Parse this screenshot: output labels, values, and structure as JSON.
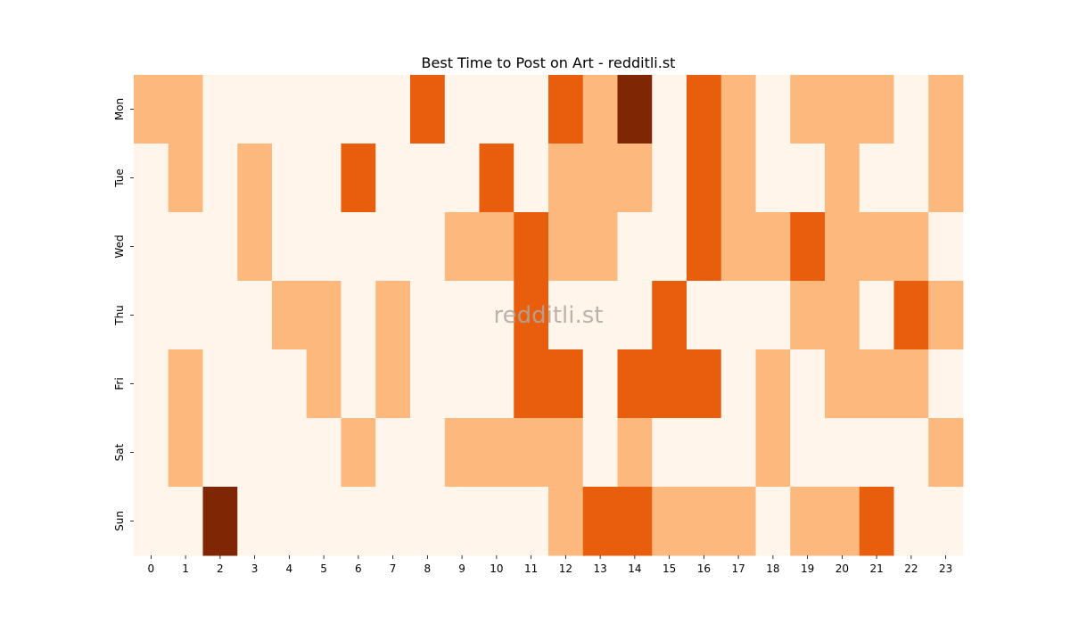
{
  "chart_data": {
    "type": "heatmap",
    "title": "Best Time to Post on Art - redditli.st",
    "watermark": "redditli.st",
    "xlabel": "",
    "ylabel": "",
    "x": [
      "0",
      "1",
      "2",
      "3",
      "4",
      "5",
      "6",
      "7",
      "8",
      "9",
      "10",
      "11",
      "12",
      "13",
      "14",
      "15",
      "16",
      "17",
      "18",
      "19",
      "20",
      "21",
      "22",
      "23"
    ],
    "y": [
      "Mon",
      "Tue",
      "Wed",
      "Thu",
      "Fri",
      "Sat",
      "Sun"
    ],
    "colormap": [
      "#fff5eb",
      "#fdb97d",
      "#e95e0d",
      "#7f2704"
    ],
    "values": [
      [
        1,
        1,
        0,
        0,
        0,
        0,
        0,
        0,
        2,
        0,
        0,
        0,
        2,
        1,
        3,
        0,
        2,
        1,
        0,
        1,
        1,
        1,
        0,
        1
      ],
      [
        0,
        1,
        0,
        1,
        0,
        0,
        2,
        0,
        0,
        0,
        2,
        0,
        1,
        1,
        1,
        0,
        2,
        1,
        0,
        0,
        1,
        0,
        0,
        1
      ],
      [
        0,
        0,
        0,
        1,
        0,
        0,
        0,
        0,
        0,
        1,
        1,
        2,
        1,
        1,
        0,
        0,
        2,
        1,
        1,
        2,
        1,
        1,
        1,
        0
      ],
      [
        0,
        0,
        0,
        0,
        1,
        1,
        0,
        1,
        0,
        0,
        0,
        2,
        0,
        0,
        0,
        2,
        0,
        0,
        0,
        1,
        1,
        0,
        2,
        1
      ],
      [
        0,
        1,
        0,
        0,
        0,
        1,
        0,
        1,
        0,
        0,
        0,
        2,
        2,
        0,
        2,
        2,
        2,
        0,
        1,
        0,
        1,
        1,
        1,
        0
      ],
      [
        0,
        1,
        0,
        0,
        0,
        0,
        1,
        0,
        0,
        1,
        1,
        1,
        1,
        0,
        1,
        0,
        0,
        0,
        1,
        0,
        0,
        0,
        0,
        1
      ],
      [
        0,
        0,
        3,
        0,
        0,
        0,
        0,
        0,
        0,
        0,
        0,
        0,
        1,
        2,
        2,
        1,
        1,
        1,
        0,
        1,
        1,
        2,
        0,
        0
      ]
    ]
  }
}
